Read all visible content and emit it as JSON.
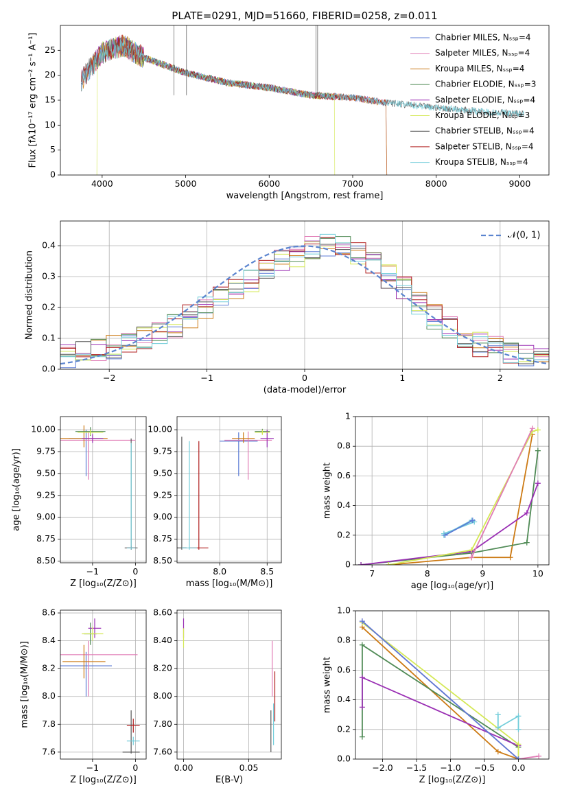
{
  "chart_data": [
    {
      "type": "line",
      "title": "PLATE=0291, MJD=51660, FIBERID=0258, z=0.011",
      "xlabel": "wavelength [Angstrom, rest frame]",
      "ylabel": "Flux [fλ10⁻¹⁷ erg cm⁻² s⁻¹ A⁻¹]",
      "xlim": [
        3500,
        9350
      ],
      "ylim": [
        0,
        30
      ],
      "xticks": [
        4000,
        5000,
        6000,
        7000,
        8000,
        9000
      ],
      "yticks": [
        0,
        5,
        10,
        15,
        20,
        25
      ],
      "legend": "top-right",
      "grid": false,
      "series": [
        {
          "name": "Chabrier MILES, Nₛₛₚ=4",
          "color": "#5b7bd5",
          "start": 3750,
          "end": 7400
        },
        {
          "name": "Salpeter MILES, Nₛₛₚ=4",
          "color": "#e07bb5",
          "start": 3750,
          "end": 7400
        },
        {
          "name": "Kroupa MILES, Nₛₛₚ=4",
          "color": "#cc7a14",
          "start": 3750,
          "end": 7400
        },
        {
          "name": "Chabrier ELODIE, Nₛₛₚ=3",
          "color": "#4f8a55",
          "start": 3900,
          "end": 6800
        },
        {
          "name": "Salpeter ELODIE, Nₛₛₚ=4",
          "color": "#9a2fb4",
          "start": 3900,
          "end": 6800
        },
        {
          "name": "Kroupa ELODIE, Nₛₛₚ=3",
          "color": "#d4e855",
          "start": 3900,
          "end": 6800
        },
        {
          "name": "Chabrier STELIB, Nₛₛₚ=4",
          "color": "#555555",
          "start": 3750,
          "end": 9050
        },
        {
          "name": "Salpeter STELIB, Nₛₛₚ=4",
          "color": "#b01e1e",
          "start": 3750,
          "end": 7430
        },
        {
          "name": "Kroupa STELIB, Nₛₛₚ=4",
          "color": "#72cdda",
          "start": 3750,
          "end": 9050
        }
      ],
      "data_sampled": {
        "x": [
          3750,
          4000,
          4250,
          4500,
          5000,
          5500,
          6000,
          6500,
          7000,
          7400,
          8000,
          8500,
          9000
        ],
        "flux": [
          19.0,
          24.5,
          26.0,
          23.5,
          20.5,
          18.5,
          17.5,
          16.0,
          15.5,
          14.5,
          13.5,
          12.8,
          12.3
        ]
      }
    },
    {
      "type": "step",
      "xlabel": "(data-model)/error",
      "ylabel": "Normed distribution",
      "xlim": [
        -2.5,
        2.5
      ],
      "ylim": [
        0,
        0.48
      ],
      "xticks": [
        -2,
        -1,
        0,
        1,
        2
      ],
      "yticks": [
        0.0,
        0.1,
        0.2,
        0.3,
        0.4
      ],
      "grid": true,
      "legend": "top-right",
      "reference": {
        "name": "𝒩(0, 1)",
        "color": "#5b84cf",
        "style": "dashed"
      },
      "bin_width": 0.1,
      "envelope": [
        0.04,
        0.05,
        0.06,
        0.07,
        0.08,
        0.1,
        0.12,
        0.14,
        0.17,
        0.2,
        0.23,
        0.26,
        0.29,
        0.32,
        0.35,
        0.37,
        0.39,
        0.4,
        0.4,
        0.38,
        0.35,
        0.3,
        0.26,
        0.21,
        0.17,
        0.14,
        0.11,
        0.08,
        0.07,
        0.06,
        0.05,
        0.04
      ]
    },
    {
      "type": "scatter-errorbar",
      "xlabel": "Z [log₁₀(Z/Z⊙)]",
      "ylabel": "age  [log₁₀(age/yr)]",
      "xlim": [
        -1.75,
        0.25
      ],
      "ylim": [
        8.48,
        10.15
      ],
      "xticks": [
        -1,
        0
      ],
      "yticks": [
        8.5,
        8.75,
        9.0,
        9.25,
        9.5,
        9.75,
        10.0
      ],
      "points": [
        {
          "x": -1.15,
          "y": 9.9,
          "xerr": 0.4,
          "yerr": [
            0.43,
            0.1
          ],
          "color": "#5b7bd5"
        },
        {
          "x": -1.1,
          "y": 9.88,
          "xerr": 1.1,
          "yerr": [
            0.45,
            0.1
          ],
          "color": "#e07bb5"
        },
        {
          "x": -1.2,
          "y": 9.9,
          "xerr": 0.55,
          "yerr": [
            0.1,
            0.15
          ],
          "color": "#cc7a14"
        },
        {
          "x": -1.05,
          "y": 9.98,
          "xerr": 0.35,
          "yerr": [
            0.05,
            0.05
          ],
          "color": "#4f8a55"
        },
        {
          "x": -1.0,
          "y": 9.9,
          "xerr": 0.25,
          "yerr": [
            0.05,
            0.05
          ],
          "color": "#9a2fb4"
        },
        {
          "x": -1.05,
          "y": 9.97,
          "xerr": 0.3,
          "yerr": [
            0.03,
            0.03
          ],
          "color": "#d4e855"
        },
        {
          "x": -0.1,
          "y": 8.65,
          "xerr": 0.15,
          "yerr": [
            0.02,
            1.25
          ],
          "color": "#555555"
        },
        {
          "x": -0.1,
          "y": 8.65,
          "xerr": 0.1,
          "yerr": [
            0.02,
            0.02
          ],
          "color": "#b01e1e"
        },
        {
          "x": -0.1,
          "y": 8.65,
          "xerr": 0.1,
          "yerr": [
            0.02,
            1.2
          ],
          "color": "#72cdda"
        }
      ]
    },
    {
      "type": "scatter-errorbar",
      "xlabel": "mass [log₁₀(M/M⊙)]",
      "xlim": [
        7.55,
        8.65
      ],
      "ylim": [
        8.48,
        10.15
      ],
      "xticks": [
        8.0,
        8.5
      ],
      "yticks": [
        8.5,
        8.75,
        9.0,
        9.25,
        9.5,
        9.75,
        10.0
      ],
      "points": [
        {
          "x": 8.2,
          "y": 9.87,
          "xerr": 0.2,
          "yerr": [
            0.4,
            0.1
          ],
          "color": "#5b7bd5"
        },
        {
          "x": 8.3,
          "y": 9.88,
          "xerr": 0.25,
          "yerr": [
            0.45,
            0.1
          ],
          "color": "#e07bb5"
        },
        {
          "x": 8.25,
          "y": 9.9,
          "xerr": 0.12,
          "yerr": [
            0.05,
            0.07
          ],
          "color": "#cc7a14"
        },
        {
          "x": 8.45,
          "y": 9.98,
          "xerr": 0.08,
          "yerr": [
            0.03,
            0.03
          ],
          "color": "#4f8a55"
        },
        {
          "x": 8.5,
          "y": 9.9,
          "xerr": 0.07,
          "yerr": [
            0.1,
            0.1
          ],
          "color": "#9a2fb4"
        },
        {
          "x": 8.45,
          "y": 9.97,
          "xerr": 0.08,
          "yerr": [
            0.03,
            0.03
          ],
          "color": "#d4e855"
        },
        {
          "x": 7.6,
          "y": 8.65,
          "xerr": 0.05,
          "yerr": [
            0.02,
            1.27
          ],
          "color": "#555555"
        },
        {
          "x": 7.78,
          "y": 8.65,
          "xerr": 0.1,
          "yerr": [
            0.02,
            1.22
          ],
          "color": "#b01e1e"
        },
        {
          "x": 7.68,
          "y": 8.65,
          "xerr": 0.08,
          "yerr": [
            0.02,
            1.22
          ],
          "color": "#72cdda"
        }
      ]
    },
    {
      "type": "line",
      "xlabel": "age  [log₁₀(age/yr)]",
      "ylabel": "mass weight",
      "xlim": [
        6.7,
        10.2
      ],
      "ylim": [
        0.0,
        1.0
      ],
      "xticks": [
        7,
        8,
        9,
        10
      ],
      "yticks": [
        0.0,
        0.2,
        0.4,
        0.6,
        0.8,
        1.0
      ],
      "grid": true,
      "series": [
        {
          "color": "#cc7a14",
          "x": [
            7.3,
            8.8,
            9.5,
            9.9
          ],
          "y": [
            0.0,
            0.05,
            0.05,
            0.88
          ]
        },
        {
          "color": "#4f8a55",
          "x": [
            6.8,
            8.8,
            9.8,
            10.0
          ],
          "y": [
            0.0,
            0.08,
            0.15,
            0.77
          ]
        },
        {
          "color": "#9a2fb4",
          "x": [
            6.8,
            8.8,
            9.8,
            10.0
          ],
          "y": [
            0.0,
            0.09,
            0.35,
            0.55
          ]
        },
        {
          "color": "#d4e855",
          "x": [
            7.3,
            8.8,
            9.9,
            10.0
          ],
          "y": [
            0.0,
            0.1,
            0.9,
            0.91
          ]
        },
        {
          "color": "#e07bb5",
          "x": [
            8.8,
            9.9
          ],
          "y": [
            0.05,
            0.92
          ]
        },
        {
          "color": "#72cdda",
          "x": [
            8.3,
            8.8,
            8.85,
            8.3
          ],
          "y": [
            0.2,
            0.3,
            0.29,
            0.21
          ]
        },
        {
          "color": "#5b7bd5",
          "x": [
            8.32,
            8.82
          ],
          "y": [
            0.2,
            0.3
          ]
        }
      ]
    },
    {
      "type": "scatter-errorbar",
      "xlabel": "Z [log₁₀(Z/Z⊙)]",
      "ylabel": "mass [log₁₀(M/M⊙)]",
      "xlim": [
        -1.75,
        0.25
      ],
      "ylim": [
        7.55,
        8.62
      ],
      "xticks": [
        -1,
        0
      ],
      "yticks": [
        7.6,
        7.8,
        8.0,
        8.2,
        8.4,
        8.6
      ],
      "points": [
        {
          "x": -1.15,
          "y": 8.22,
          "xerr": 0.6,
          "yerr": [
            0.22,
            0.1
          ],
          "color": "#5b7bd5"
        },
        {
          "x": -1.1,
          "y": 8.3,
          "xerr": 1.15,
          "yerr": [
            0.3,
            0.1
          ],
          "color": "#e07bb5"
        },
        {
          "x": -1.2,
          "y": 8.25,
          "xerr": 0.5,
          "yerr": [
            0.12,
            0.12
          ],
          "color": "#cc7a14"
        },
        {
          "x": -1.05,
          "y": 8.45,
          "xerr": 0.15,
          "yerr": [
            0.08,
            0.08
          ],
          "color": "#4f8a55"
        },
        {
          "x": -0.95,
          "y": 8.49,
          "xerr": 0.15,
          "yerr": [
            0.07,
            0.07
          ],
          "color": "#9a2fb4"
        },
        {
          "x": -1.0,
          "y": 8.45,
          "xerr": 0.25,
          "yerr": [
            0.05,
            0.05
          ],
          "color": "#d4e855"
        },
        {
          "x": -0.1,
          "y": 7.6,
          "xerr": 0.2,
          "yerr": [
            0.01,
            0.3
          ],
          "color": "#555555"
        },
        {
          "x": -0.05,
          "y": 7.79,
          "xerr": 0.15,
          "yerr": [
            0.05,
            0.05
          ],
          "color": "#b01e1e"
        },
        {
          "x": -0.05,
          "y": 7.68,
          "xerr": 0.15,
          "yerr": [
            0.03,
            0.03
          ],
          "color": "#72cdda"
        }
      ]
    },
    {
      "type": "scatter-errorbar",
      "xlabel": "E(B-V)",
      "xlim": [
        -0.005,
        0.075
      ],
      "ylim": [
        7.55,
        8.62
      ],
      "xticks": [
        0.0,
        0.05
      ],
      "yticks": [
        7.6,
        7.8,
        8.0,
        8.2,
        8.4,
        8.6
      ],
      "points": [
        {
          "x": 0.0,
          "y": 8.49,
          "xerr": 0.0,
          "yerr": [
            0.07,
            0.07
          ],
          "color": "#9a2fb4"
        },
        {
          "x": 0.0,
          "y": 8.42,
          "xerr": 0.0,
          "yerr": [
            0.07,
            0.07
          ],
          "color": "#d4e855"
        },
        {
          "x": 0.067,
          "y": 7.75,
          "xerr": 0.0,
          "yerr": [
            0.15,
            0.15
          ],
          "color": "#555555"
        },
        {
          "x": 0.068,
          "y": 8.2,
          "xerr": 0.0,
          "yerr": [
            0.2,
            0.2
          ],
          "color": "#e07bb5"
        },
        {
          "x": 0.069,
          "y": 7.8,
          "xerr": 0.0,
          "yerr": [
            0.15,
            0.15
          ],
          "color": "#72cdda"
        },
        {
          "x": 0.07,
          "y": 8.0,
          "xerr": 0.0,
          "yerr": [
            0.18,
            0.18
          ],
          "color": "#b01e1e"
        }
      ]
    },
    {
      "type": "line",
      "xlabel": "Z [log₁₀(Z/Z⊙)]",
      "ylabel": "mass weight",
      "xlim": [
        -2.4,
        0.45
      ],
      "ylim": [
        0.0,
        1.0
      ],
      "xticks": [
        -2.0,
        -1.5,
        -1.0,
        -0.5,
        0.0
      ],
      "yticks": [
        0.0,
        0.2,
        0.4,
        0.6,
        0.8,
        1.0
      ],
      "grid": true,
      "series": [
        {
          "color": "#cc7a14",
          "x": [
            -2.3,
            -0.3,
            0.0
          ],
          "y": [
            0.89,
            0.05,
            0.0
          ]
        },
        {
          "color": "#4f8a55",
          "x": [
            -2.3,
            -2.3,
            0.0
          ],
          "y": [
            0.15,
            0.77,
            0.08
          ]
        },
        {
          "color": "#9a2fb4",
          "x": [
            -2.3,
            -2.3,
            0.0
          ],
          "y": [
            0.35,
            0.55,
            0.09
          ]
        },
        {
          "color": "#d4e855",
          "x": [
            -2.3,
            0.0,
            0.0
          ],
          "y": [
            0.92,
            0.1,
            0.0
          ]
        },
        {
          "color": "#e07bb5",
          "x": [
            -2.3,
            0.0,
            0.3
          ],
          "y": [
            0.93,
            0.0,
            0.02
          ]
        },
        {
          "color": "#72cdda",
          "x": [
            -0.3,
            -0.3,
            0.0,
            0.0
          ],
          "y": [
            0.3,
            0.21,
            0.29,
            0.2
          ]
        },
        {
          "color": "#5b7bd5",
          "x": [
            -2.3,
            0.0
          ],
          "y": [
            0.93,
            0.0
          ]
        }
      ]
    }
  ]
}
